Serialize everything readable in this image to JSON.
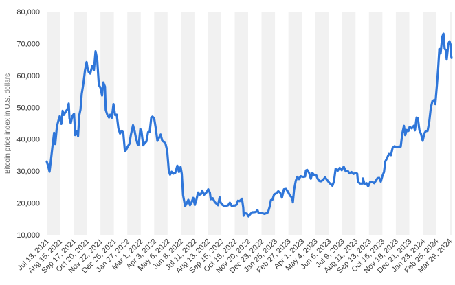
{
  "chart_data": {
    "type": "line",
    "title": "",
    "xlabel": "",
    "ylabel": "Bitcoin price index in U.S. dollars",
    "ylim": [
      10000,
      80000
    ],
    "yticks": [
      10000,
      20000,
      30000,
      40000,
      50000,
      60000,
      70000,
      80000
    ],
    "ytick_labels": [
      "10,000",
      "20,000",
      "30,000",
      "40,000",
      "50,000",
      "60,000",
      "70,000",
      "80,000"
    ],
    "xticks": [
      "2021-07-13",
      "2021-08-15",
      "2021-09-17",
      "2021-10-20",
      "2021-11-22",
      "2021-12-25",
      "2022-01-27",
      "2022-03-01",
      "2022-04-03",
      "2022-05-06",
      "2022-06-08",
      "2022-07-11",
      "2022-08-13",
      "2022-09-15",
      "2022-10-18",
      "2022-11-20",
      "2022-12-23",
      "2023-01-25",
      "2023-02-27",
      "2023-04-01",
      "2023-05-04",
      "2023-06-06",
      "2023-07-09",
      "2023-08-11",
      "2023-09-13",
      "2023-10-16",
      "2023-11-18",
      "2023-12-21",
      "2024-01-23",
      "2024-02-25",
      "2024-03-29"
    ],
    "xtick_labels": [
      "Jul 13, 2021",
      "Aug 15, 2021",
      "Sep 17, 2021",
      "Oct 20, 2021",
      "Nov 22, 2021",
      "Dec 25, 2021",
      "Jan 27, 2022",
      "Mar 1, 2022",
      "Apr 3, 2022",
      "May 6, 2022",
      "Jun 8, 2022",
      "Jul 11, 2022",
      "Aug 13, 2022",
      "Sep 15, 2022",
      "Oct 18, 2022",
      "Nov 20, 2022",
      "Dec 23, 2022",
      "Jan 25, 2023",
      "Feb 27, 2023",
      "Apr 1, 2023",
      "May 4, 2023",
      "Jun 6, 2023",
      "Jul 9, 2023",
      "Aug 11, 2023",
      "Sep 13, 2023",
      "Oct 16, 2023",
      "Nov 18, 2023",
      "Dec 21, 2023",
      "Jan 23, 2024",
      "Feb 25, 2024",
      "Mar 29, 2024"
    ],
    "x_range": [
      "2021-07-13",
      "2024-04-03"
    ],
    "grid": "alternating vertical bands",
    "series": [
      {
        "name": "",
        "color": "#2f76d9",
        "points": [
          [
            "2021-07-13",
            33000
          ],
          [
            "2021-07-16",
            31800
          ],
          [
            "2021-07-20",
            29800
          ],
          [
            "2021-07-24",
            34200
          ],
          [
            "2021-07-28",
            38800
          ],
          [
            "2021-07-31",
            42000
          ],
          [
            "2021-08-03",
            38500
          ],
          [
            "2021-08-07",
            44000
          ],
          [
            "2021-08-11",
            46000
          ],
          [
            "2021-08-14",
            47200
          ],
          [
            "2021-08-18",
            44800
          ],
          [
            "2021-08-21",
            48900
          ],
          [
            "2021-08-24",
            47600
          ],
          [
            "2021-08-28",
            48500
          ],
          [
            "2021-09-02",
            49500
          ],
          [
            "2021-09-05",
            51200
          ],
          [
            "2021-09-07",
            46500
          ],
          [
            "2021-09-10",
            45000
          ],
          [
            "2021-09-14",
            47300
          ],
          [
            "2021-09-18",
            48000
          ],
          [
            "2021-09-21",
            41300
          ],
          [
            "2021-09-24",
            42600
          ],
          [
            "2021-09-28",
            41000
          ],
          [
            "2021-10-01",
            47600
          ],
          [
            "2021-10-04",
            49300
          ],
          [
            "2021-10-07",
            54200
          ],
          [
            "2021-10-11",
            57400
          ],
          [
            "2021-10-15",
            61500
          ],
          [
            "2021-10-19",
            64200
          ],
          [
            "2021-10-21",
            62500
          ],
          [
            "2021-10-24",
            61100
          ],
          [
            "2021-10-28",
            60600
          ],
          [
            "2021-11-02",
            63000
          ],
          [
            "2021-11-06",
            61700
          ],
          [
            "2021-11-10",
            67600
          ],
          [
            "2021-11-14",
            65000
          ],
          [
            "2021-11-18",
            57000
          ],
          [
            "2021-11-22",
            56200
          ],
          [
            "2021-11-26",
            53700
          ],
          [
            "2021-11-29",
            57800
          ],
          [
            "2021-12-03",
            56500
          ],
          [
            "2021-12-05",
            49200
          ],
          [
            "2021-12-09",
            47600
          ],
          [
            "2021-12-13",
            46800
          ],
          [
            "2021-12-16",
            47700
          ],
          [
            "2021-12-20",
            46700
          ],
          [
            "2021-12-24",
            51000
          ],
          [
            "2021-12-28",
            47600
          ],
          [
            "2022-01-01",
            47700
          ],
          [
            "2022-01-05",
            43500
          ],
          [
            "2022-01-09",
            41800
          ],
          [
            "2022-01-13",
            42600
          ],
          [
            "2022-01-17",
            42200
          ],
          [
            "2022-01-21",
            36300
          ],
          [
            "2022-01-24",
            36600
          ],
          [
            "2022-01-28",
            37700
          ],
          [
            "2022-02-01",
            38500
          ],
          [
            "2022-02-05",
            41500
          ],
          [
            "2022-02-10",
            44400
          ],
          [
            "2022-02-14",
            42500
          ],
          [
            "2022-02-18",
            40000
          ],
          [
            "2022-02-22",
            38200
          ],
          [
            "2022-02-24",
            38300
          ],
          [
            "2022-02-28",
            43200
          ],
          [
            "2022-03-03",
            42400
          ],
          [
            "2022-03-07",
            38100
          ],
          [
            "2022-03-11",
            38800
          ],
          [
            "2022-03-15",
            39300
          ],
          [
            "2022-03-19",
            42200
          ],
          [
            "2022-03-23",
            42300
          ],
          [
            "2022-03-27",
            46800
          ],
          [
            "2022-03-30",
            47100
          ],
          [
            "2022-04-03",
            46500
          ],
          [
            "2022-04-07",
            43500
          ],
          [
            "2022-04-11",
            39500
          ],
          [
            "2022-04-15",
            40500
          ],
          [
            "2022-04-19",
            41500
          ],
          [
            "2022-04-23",
            39500
          ],
          [
            "2022-04-27",
            39200
          ],
          [
            "2022-05-01",
            38500
          ],
          [
            "2022-05-05",
            36500
          ],
          [
            "2022-05-09",
            30100
          ],
          [
            "2022-05-12",
            28900
          ],
          [
            "2022-05-16",
            29800
          ],
          [
            "2022-05-20",
            29200
          ],
          [
            "2022-05-25",
            29500
          ],
          [
            "2022-05-30",
            31700
          ],
          [
            "2022-06-03",
            29700
          ],
          [
            "2022-06-07",
            31300
          ],
          [
            "2022-06-10",
            29100
          ],
          [
            "2022-06-13",
            22500
          ],
          [
            "2022-06-16",
            20400
          ],
          [
            "2022-06-18",
            19000
          ],
          [
            "2022-06-22",
            19900
          ],
          [
            "2022-06-26",
            21000
          ],
          [
            "2022-06-30",
            19300
          ],
          [
            "2022-07-04",
            20200
          ],
          [
            "2022-07-08",
            21600
          ],
          [
            "2022-07-12",
            19400
          ],
          [
            "2022-07-16",
            21100
          ],
          [
            "2022-07-20",
            23300
          ],
          [
            "2022-07-24",
            22600
          ],
          [
            "2022-07-27",
            22800
          ],
          [
            "2022-07-30",
            23900
          ],
          [
            "2022-08-04",
            22600
          ],
          [
            "2022-08-09",
            23200
          ],
          [
            "2022-08-14",
            24300
          ],
          [
            "2022-08-18",
            23200
          ],
          [
            "2022-08-20",
            21200
          ],
          [
            "2022-08-25",
            21500
          ],
          [
            "2022-08-30",
            20300
          ],
          [
            "2022-09-03",
            19800
          ],
          [
            "2022-09-07",
            19300
          ],
          [
            "2022-09-11",
            21800
          ],
          [
            "2022-09-13",
            20200
          ],
          [
            "2022-09-18",
            19400
          ],
          [
            "2022-09-22",
            19100
          ],
          [
            "2022-09-27",
            19100
          ],
          [
            "2022-10-02",
            19300
          ],
          [
            "2022-10-06",
            20100
          ],
          [
            "2022-10-11",
            19000
          ],
          [
            "2022-10-15",
            19200
          ],
          [
            "2022-10-19",
            19200
          ],
          [
            "2022-10-23",
            19500
          ],
          [
            "2022-10-26",
            20700
          ],
          [
            "2022-10-30",
            20600
          ],
          [
            "2022-11-05",
            21300
          ],
          [
            "2022-11-08",
            18500
          ],
          [
            "2022-11-09",
            16000
          ],
          [
            "2022-11-12",
            16800
          ],
          [
            "2022-11-17",
            16700
          ],
          [
            "2022-11-21",
            15800
          ],
          [
            "2022-11-25",
            16500
          ],
          [
            "2022-11-30",
            17100
          ],
          [
            "2022-12-04",
            17100
          ],
          [
            "2022-12-09",
            17200
          ],
          [
            "2022-12-13",
            17800
          ],
          [
            "2022-12-16",
            16800
          ],
          [
            "2022-12-20",
            16900
          ],
          [
            "2022-12-25",
            16800
          ],
          [
            "2022-12-30",
            16600
          ],
          [
            "2023-01-04",
            16800
          ],
          [
            "2023-01-08",
            17100
          ],
          [
            "2023-01-12",
            18900
          ],
          [
            "2023-01-15",
            20900
          ],
          [
            "2023-01-19",
            21100
          ],
          [
            "2023-01-23",
            22700
          ],
          [
            "2023-01-28",
            23000
          ],
          [
            "2023-02-02",
            23700
          ],
          [
            "2023-02-07",
            23200
          ],
          [
            "2023-02-11",
            21700
          ],
          [
            "2023-02-16",
            24300
          ],
          [
            "2023-02-21",
            24400
          ],
          [
            "2023-02-26",
            23500
          ],
          [
            "2023-03-03",
            22300
          ],
          [
            "2023-03-08",
            21700
          ],
          [
            "2023-03-10",
            20200
          ],
          [
            "2023-03-13",
            24200
          ],
          [
            "2023-03-17",
            26900
          ],
          [
            "2023-03-21",
            28200
          ],
          [
            "2023-03-25",
            27500
          ],
          [
            "2023-03-29",
            28400
          ],
          [
            "2023-04-04",
            28200
          ],
          [
            "2023-04-09",
            28300
          ],
          [
            "2023-04-11",
            30200
          ],
          [
            "2023-04-14",
            30400
          ],
          [
            "2023-04-19",
            29400
          ],
          [
            "2023-04-23",
            27600
          ],
          [
            "2023-04-27",
            29400
          ],
          [
            "2023-05-02",
            28700
          ],
          [
            "2023-05-06",
            28800
          ],
          [
            "2023-05-10",
            27600
          ],
          [
            "2023-05-14",
            26900
          ],
          [
            "2023-05-18",
            26800
          ],
          [
            "2023-05-23",
            27200
          ],
          [
            "2023-05-28",
            28000
          ],
          [
            "2023-06-02",
            27200
          ],
          [
            "2023-06-07",
            26400
          ],
          [
            "2023-06-11",
            25900
          ],
          [
            "2023-06-15",
            25400
          ],
          [
            "2023-06-19",
            26800
          ],
          [
            "2023-06-21",
            28800
          ],
          [
            "2023-06-23",
            30700
          ],
          [
            "2023-06-28",
            30100
          ],
          [
            "2023-07-03",
            31000
          ],
          [
            "2023-07-08",
            30300
          ],
          [
            "2023-07-13",
            31400
          ],
          [
            "2023-07-18",
            29900
          ],
          [
            "2023-07-23",
            30000
          ],
          [
            "2023-07-27",
            29300
          ],
          [
            "2023-08-01",
            29700
          ],
          [
            "2023-08-06",
            29100
          ],
          [
            "2023-08-11",
            29400
          ],
          [
            "2023-08-15",
            29200
          ],
          [
            "2023-08-17",
            26600
          ],
          [
            "2023-08-22",
            26100
          ],
          [
            "2023-08-28",
            26100
          ],
          [
            "2023-08-29",
            27700
          ],
          [
            "2023-09-02",
            25900
          ],
          [
            "2023-09-07",
            26200
          ],
          [
            "2023-09-11",
            25200
          ],
          [
            "2023-09-16",
            26600
          ],
          [
            "2023-09-21",
            26600
          ],
          [
            "2023-09-26",
            26200
          ],
          [
            "2023-09-30",
            27000
          ],
          [
            "2023-10-04",
            27800
          ],
          [
            "2023-10-08",
            27900
          ],
          [
            "2023-10-12",
            26700
          ],
          [
            "2023-10-16",
            28500
          ],
          [
            "2023-10-20",
            29700
          ],
          [
            "2023-10-23",
            33000
          ],
          [
            "2023-10-27",
            34000
          ],
          [
            "2023-11-01",
            35400
          ],
          [
            "2023-11-06",
            35000
          ],
          [
            "2023-11-10",
            37300
          ],
          [
            "2023-11-15",
            37800
          ],
          [
            "2023-11-20",
            37500
          ],
          [
            "2023-11-25",
            37700
          ],
          [
            "2023-11-30",
            37700
          ],
          [
            "2023-12-04",
            41900
          ],
          [
            "2023-12-08",
            44200
          ],
          [
            "2023-12-11",
            41300
          ],
          [
            "2023-12-15",
            42900
          ],
          [
            "2023-12-19",
            42600
          ],
          [
            "2023-12-22",
            43900
          ],
          [
            "2023-12-27",
            43400
          ],
          [
            "2024-01-01",
            44200
          ],
          [
            "2024-01-04",
            42800
          ],
          [
            "2024-01-08",
            46800
          ],
          [
            "2024-01-11",
            46600
          ],
          [
            "2024-01-15",
            42800
          ],
          [
            "2024-01-19",
            41600
          ],
          [
            "2024-01-23",
            39500
          ],
          [
            "2024-01-27",
            41800
          ],
          [
            "2024-01-31",
            42600
          ],
          [
            "2024-02-04",
            42600
          ],
          [
            "2024-02-08",
            45300
          ],
          [
            "2024-02-12",
            49900
          ],
          [
            "2024-02-16",
            52000
          ],
          [
            "2024-02-20",
            52300
          ],
          [
            "2024-02-23",
            51000
          ],
          [
            "2024-02-27",
            57100
          ],
          [
            "2024-03-01",
            62400
          ],
          [
            "2024-03-04",
            68300
          ],
          [
            "2024-03-07",
            66900
          ],
          [
            "2024-03-11",
            72100
          ],
          [
            "2024-03-14",
            73100
          ],
          [
            "2024-03-17",
            68400
          ],
          [
            "2024-03-20",
            67900
          ],
          [
            "2024-03-22",
            65000
          ],
          [
            "2024-03-26",
            70000
          ],
          [
            "2024-03-29",
            70700
          ],
          [
            "2024-04-01",
            69500
          ],
          [
            "2024-04-02",
            66200
          ],
          [
            "2024-04-03",
            65500
          ]
        ]
      }
    ]
  }
}
